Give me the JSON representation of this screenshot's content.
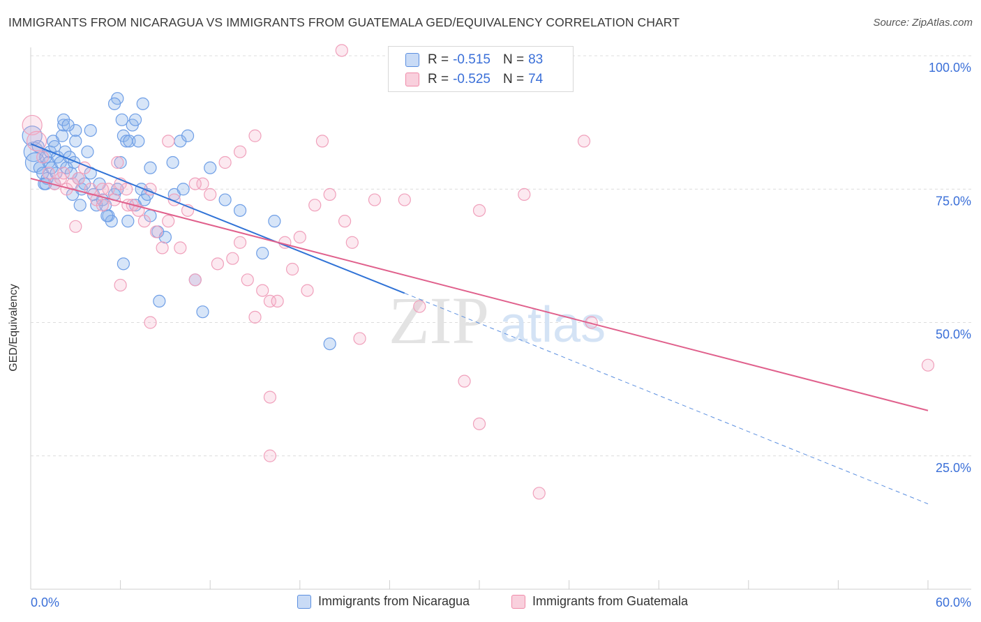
{
  "title": "IMMIGRANTS FROM NICARAGUA VS IMMIGRANTS FROM GUATEMALA GED/EQUIVALENCY CORRELATION CHART",
  "source": "Source: ZipAtlas.com",
  "watermark": {
    "zip": "ZIP",
    "atlas": "atlas"
  },
  "colors": {
    "blue": "#5b8fe0",
    "blue_line": "#2f72d6",
    "pink": "#f08aa8",
    "pink_line": "#e0608c",
    "axis_label": "#3a6fd8"
  },
  "legend": {
    "rows": [
      {
        "r_label": "R =",
        "r_value": "-0.515",
        "n_label": "N =",
        "n_value": "83"
      },
      {
        "r_label": "R =",
        "r_value": "-0.525",
        "n_label": "N =",
        "n_value": "74"
      }
    ]
  },
  "chart_data": {
    "type": "scatter",
    "title": "IMMIGRANTS FROM NICARAGUA VS IMMIGRANTS FROM GUATEMALA GED/EQUIVALENCY CORRELATION CHART",
    "xlabel": "",
    "ylabel": "GED/Equivalency",
    "xlim": [
      0,
      60
    ],
    "ylim": [
      0,
      100
    ],
    "x_tick_labels": [
      "0.0%",
      "60.0%"
    ],
    "y_tick_labels": [
      "100.0%",
      "75.0%",
      "50.0%",
      "25.0%"
    ],
    "y_ticks": [
      100,
      75,
      50,
      25
    ],
    "grid": true,
    "legend_position": "top-center",
    "series": [
      {
        "name": "Immigrants from Nicaragua",
        "color": "#5b8fe0",
        "trend": {
          "x0": 0,
          "y0": 83.5,
          "x1": 25,
          "y1": 55.5,
          "dashed_to_x": 60,
          "dashed_to_y": 16
        },
        "points": [
          [
            0.1,
            85
          ],
          [
            0.2,
            82
          ],
          [
            0.3,
            80
          ],
          [
            0.5,
            83
          ],
          [
            0.6,
            79
          ],
          [
            0.8,
            78
          ],
          [
            0.9,
            76
          ],
          [
            1.0,
            81
          ],
          [
            1.1,
            77
          ],
          [
            1.2,
            80
          ],
          [
            1.3,
            82
          ],
          [
            1.4,
            79
          ],
          [
            1.5,
            84
          ],
          [
            1.6,
            83
          ],
          [
            1.7,
            78
          ],
          [
            1.8,
            81
          ],
          [
            2.0,
            80
          ],
          [
            2.1,
            85
          ],
          [
            2.2,
            87
          ],
          [
            2.3,
            82
          ],
          [
            2.4,
            79
          ],
          [
            2.6,
            81
          ],
          [
            2.7,
            78
          ],
          [
            2.9,
            80
          ],
          [
            3.0,
            86
          ],
          [
            3.2,
            77
          ],
          [
            3.4,
            75
          ],
          [
            3.6,
            76
          ],
          [
            3.8,
            82
          ],
          [
            4.0,
            78
          ],
          [
            4.2,
            74
          ],
          [
            4.4,
            72
          ],
          [
            4.6,
            76
          ],
          [
            4.8,
            73
          ],
          [
            5.0,
            72
          ],
          [
            5.2,
            70
          ],
          [
            5.4,
            69
          ],
          [
            5.6,
            74
          ],
          [
            5.8,
            75
          ],
          [
            6.0,
            80
          ],
          [
            6.2,
            85
          ],
          [
            6.4,
            84
          ],
          [
            6.6,
            84
          ],
          [
            6.8,
            87
          ],
          [
            7.0,
            88
          ],
          [
            7.2,
            84
          ],
          [
            7.4,
            75
          ],
          [
            7.6,
            73
          ],
          [
            7.8,
            74
          ],
          [
            8.0,
            79
          ],
          [
            8.5,
            67
          ],
          [
            9.0,
            66
          ],
          [
            9.5,
            80
          ],
          [
            10.0,
            84
          ],
          [
            10.5,
            85
          ],
          [
            11.0,
            58
          ],
          [
            11.5,
            52
          ],
          [
            12.0,
            79
          ],
          [
            13.0,
            73
          ],
          [
            14.0,
            71
          ],
          [
            5.8,
            92
          ],
          [
            5.6,
            91
          ],
          [
            6.1,
            88
          ],
          [
            7.5,
            91
          ],
          [
            2.2,
            88
          ],
          [
            2.5,
            87
          ],
          [
            4.0,
            86
          ],
          [
            3.0,
            84
          ],
          [
            1.0,
            76
          ],
          [
            1.6,
            76
          ],
          [
            2.8,
            74
          ],
          [
            3.3,
            72
          ],
          [
            5.1,
            70
          ],
          [
            6.5,
            69
          ],
          [
            8.6,
            54
          ],
          [
            6.2,
            61
          ],
          [
            7.0,
            72
          ],
          [
            8.0,
            70
          ],
          [
            9.6,
            74
          ],
          [
            10.2,
            75
          ],
          [
            16.3,
            69
          ],
          [
            20.0,
            46
          ],
          [
            15.5,
            63
          ]
        ]
      },
      {
        "name": "Immigrants from Guatemala",
        "color": "#f08aa8",
        "trend": {
          "x0": 0,
          "y0": 77,
          "x1": 60,
          "y1": 33.5
        },
        "points": [
          [
            0.1,
            87
          ],
          [
            0.4,
            84
          ],
          [
            0.8,
            81
          ],
          [
            1.2,
            78
          ],
          [
            1.6,
            76
          ],
          [
            2.0,
            77
          ],
          [
            2.4,
            75
          ],
          [
            2.8,
            76
          ],
          [
            3.2,
            77
          ],
          [
            3.6,
            79
          ],
          [
            4.0,
            75
          ],
          [
            4.4,
            73
          ],
          [
            4.8,
            72
          ],
          [
            5.2,
            75
          ],
          [
            5.6,
            73
          ],
          [
            6.0,
            76
          ],
          [
            6.4,
            75
          ],
          [
            6.8,
            72
          ],
          [
            7.2,
            71
          ],
          [
            7.6,
            69
          ],
          [
            8.0,
            75
          ],
          [
            8.4,
            67
          ],
          [
            8.8,
            64
          ],
          [
            9.2,
            69
          ],
          [
            9.6,
            73
          ],
          [
            10.0,
            64
          ],
          [
            10.5,
            71
          ],
          [
            11.0,
            58
          ],
          [
            11.5,
            76
          ],
          [
            12.0,
            74
          ],
          [
            13.0,
            80
          ],
          [
            13.5,
            62
          ],
          [
            14.0,
            65
          ],
          [
            14.5,
            58
          ],
          [
            15.0,
            51
          ],
          [
            15.5,
            56
          ],
          [
            16.0,
            54
          ],
          [
            16.5,
            54
          ],
          [
            17.0,
            65
          ],
          [
            17.5,
            60
          ],
          [
            18.0,
            66
          ],
          [
            18.5,
            56
          ],
          [
            19.0,
            72
          ],
          [
            20.0,
            74
          ],
          [
            21.0,
            69
          ],
          [
            21.5,
            65
          ],
          [
            22.0,
            47
          ],
          [
            23.0,
            73
          ],
          [
            25.0,
            73
          ],
          [
            26.0,
            53
          ],
          [
            30.0,
            71
          ],
          [
            33.0,
            74
          ],
          [
            37.0,
            84
          ],
          [
            20.8,
            101
          ],
          [
            15.0,
            85
          ],
          [
            14.0,
            82
          ],
          [
            19.5,
            84
          ],
          [
            9.2,
            84
          ],
          [
            11.0,
            76
          ],
          [
            12.5,
            61
          ],
          [
            6.0,
            57
          ],
          [
            8.0,
            50
          ],
          [
            3.0,
            68
          ],
          [
            5.8,
            80
          ],
          [
            6.5,
            72
          ],
          [
            4.8,
            75
          ],
          [
            2.2,
            78
          ],
          [
            29.0,
            39
          ],
          [
            30.0,
            31
          ],
          [
            34.0,
            18
          ],
          [
            16.0,
            36
          ],
          [
            16.0,
            25
          ],
          [
            60.0,
            42
          ],
          [
            37.5,
            50
          ]
        ]
      }
    ]
  }
}
